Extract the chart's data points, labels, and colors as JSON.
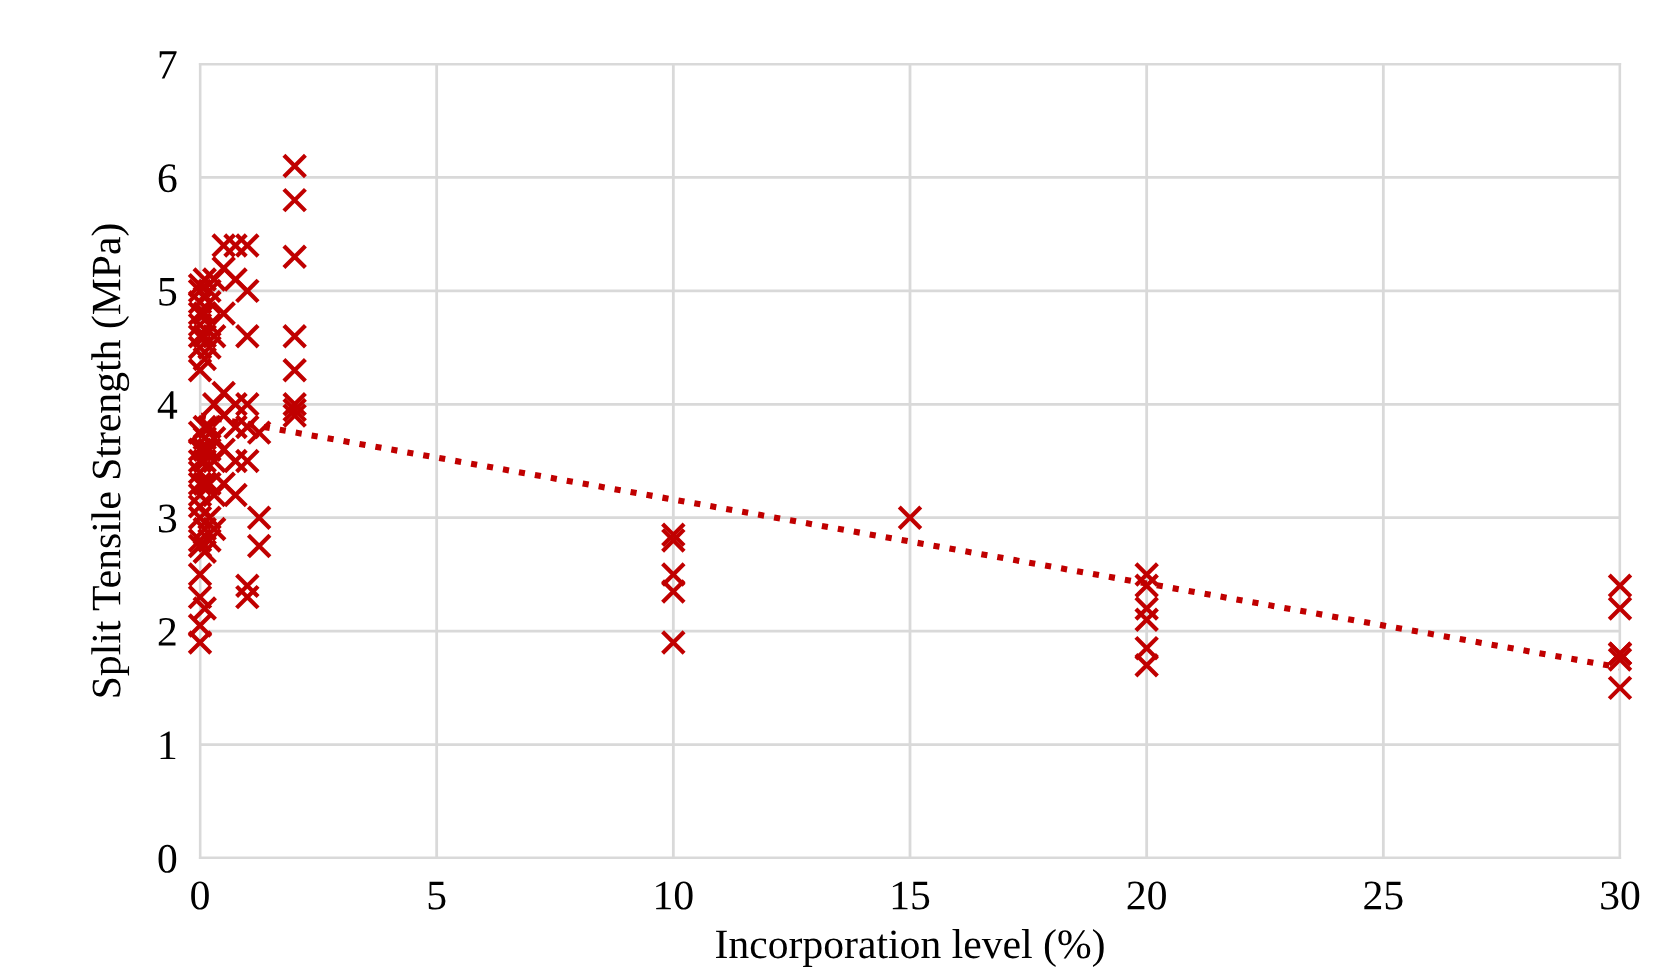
{
  "chart_data": {
    "type": "scatter",
    "xlabel": "Incorporation level (%)",
    "ylabel": "Split Tensile Strength (MPa)",
    "xlim": [
      0,
      30
    ],
    "ylim": [
      0,
      7
    ],
    "xticks": [
      0,
      5,
      10,
      15,
      20,
      25,
      30
    ],
    "yticks": [
      0,
      1,
      2,
      3,
      4,
      5,
      6,
      7
    ],
    "grid": true,
    "marker": "cross",
    "series": [
      {
        "color": "#c00000",
        "x": [
          0,
          0,
          0,
          0,
          0,
          0,
          0,
          0,
          0,
          0,
          0,
          0,
          0,
          0,
          0,
          0,
          0,
          0,
          0,
          0,
          0,
          0,
          0.1,
          0.1,
          0.1,
          0.1,
          0.1,
          0.1,
          0.1,
          0.1,
          0.1,
          0.1,
          0.1,
          0.1,
          0.2,
          0.2,
          0.2,
          0.2,
          0.2,
          0.2,
          0.2,
          0.2,
          0.2,
          0.3,
          0.3,
          0.3,
          0.3,
          0.3,
          0.3,
          0.3,
          0.5,
          0.5,
          0.5,
          0.5,
          0.5,
          0.5,
          0.5,
          0.75,
          0.75,
          0.75,
          0.75,
          0.75,
          0.75,
          1,
          1,
          1,
          1,
          1,
          1,
          1,
          1,
          1.25,
          1.25,
          1.25,
          2,
          2,
          2,
          2,
          2,
          2,
          2,
          2,
          10,
          10,
          10,
          10,
          10,
          15,
          20,
          20,
          20,
          20,
          20,
          20,
          30,
          30,
          30,
          30,
          30,
          30
        ],
        "values": [
          1.9,
          2.05,
          2.3,
          2.5,
          2.75,
          2.8,
          3.0,
          3.2,
          3.3,
          3.4,
          3.5,
          3.6,
          3.75,
          4.3,
          4.5,
          4.6,
          4.7,
          4.8,
          4.9,
          5.0,
          5.05,
          3.1,
          2.7,
          2.9,
          3.3,
          3.5,
          3.7,
          4.4,
          4.6,
          4.8,
          5.1,
          2.2,
          3.6,
          3.8,
          2.8,
          3.0,
          3.3,
          3.6,
          3.8,
          4.5,
          4.7,
          4.9,
          5.0,
          2.9,
          3.2,
          3.5,
          3.7,
          4.0,
          4.6,
          5.1,
          3.3,
          3.6,
          3.9,
          4.1,
          4.8,
          5.2,
          5.4,
          3.2,
          3.5,
          3.8,
          4.0,
          5.1,
          5.4,
          2.3,
          2.4,
          3.5,
          3.8,
          4.0,
          4.6,
          5.0,
          5.4,
          2.75,
          3.0,
          3.75,
          3.9,
          4.0,
          4.3,
          4.6,
          5.3,
          5.8,
          6.1,
          3.95,
          1.9,
          2.35,
          2.5,
          2.8,
          2.85,
          3.0,
          1.7,
          1.85,
          2.1,
          2.2,
          2.4,
          2.5,
          1.5,
          1.75,
          1.8,
          1.8,
          2.2,
          2.4
        ]
      },
      {
        "type": "line",
        "color": "#c00000",
        "line_style": "dotted",
        "marker": "none",
        "x": [
          0,
          30
        ],
        "values": [
          3.9,
          1.68
        ]
      }
    ]
  }
}
